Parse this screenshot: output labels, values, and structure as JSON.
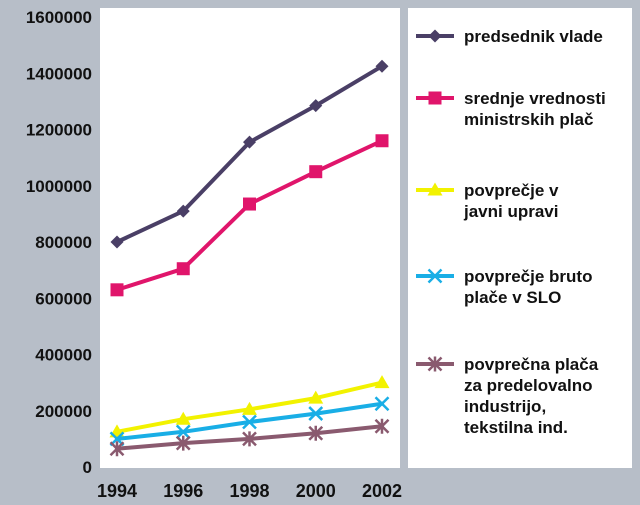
{
  "chart_data": {
    "type": "line",
    "title": "",
    "xlabel": "",
    "ylabel": "",
    "x": [
      1994,
      1996,
      1998,
      2000,
      2002
    ],
    "x_tick_labels": [
      "1994",
      "1996",
      "1998",
      "2000",
      "2002"
    ],
    "ylim": [
      0,
      1600000
    ],
    "y_ticks": [
      0,
      200000,
      400000,
      600000,
      800000,
      1000000,
      1200000,
      1400000,
      1600000
    ],
    "y_tick_labels": [
      "0",
      "200000",
      "400000",
      "600000",
      "800000",
      "1000000",
      "1200000",
      "1400000",
      "1600000"
    ],
    "grid": false,
    "legend_position": "right",
    "series": [
      {
        "name": "predsednik vlade",
        "legend_lines": [
          "predsednik vlade"
        ],
        "marker": "diamond",
        "color": "#4a3f66",
        "values": [
          800000,
          910000,
          1155000,
          1285000,
          1425000
        ]
      },
      {
        "name": "srednje vrednosti ministrskih plač",
        "legend_lines": [
          "srednje vrednosti",
          "ministrskih plač"
        ],
        "marker": "square",
        "color": "#e0156b",
        "values": [
          630000,
          705000,
          935000,
          1050000,
          1160000
        ]
      },
      {
        "name": "povprečje v javni upravi",
        "legend_lines": [
          "povprečje v",
          "javni upravi"
        ],
        "marker": "triangle",
        "color": "#f2f200",
        "values": [
          125000,
          170000,
          205000,
          245000,
          300000
        ]
      },
      {
        "name": "povprečje bruto plače v SLO",
        "legend_lines": [
          "povprečje bruto",
          "plače v SLO"
        ],
        "marker": "x",
        "color": "#19aee6",
        "values": [
          100000,
          125000,
          160000,
          190000,
          225000
        ]
      },
      {
        "name": "povprečna plača za predelovalno industrijo, tekstilna ind.",
        "legend_lines": [
          "povprečna plača",
          "za predelovalno",
          "industrijo,",
          "tekstilna ind."
        ],
        "marker": "asterisk",
        "color": "#8a5a6f",
        "values": [
          65000,
          85000,
          100000,
          120000,
          145000
        ]
      }
    ]
  }
}
